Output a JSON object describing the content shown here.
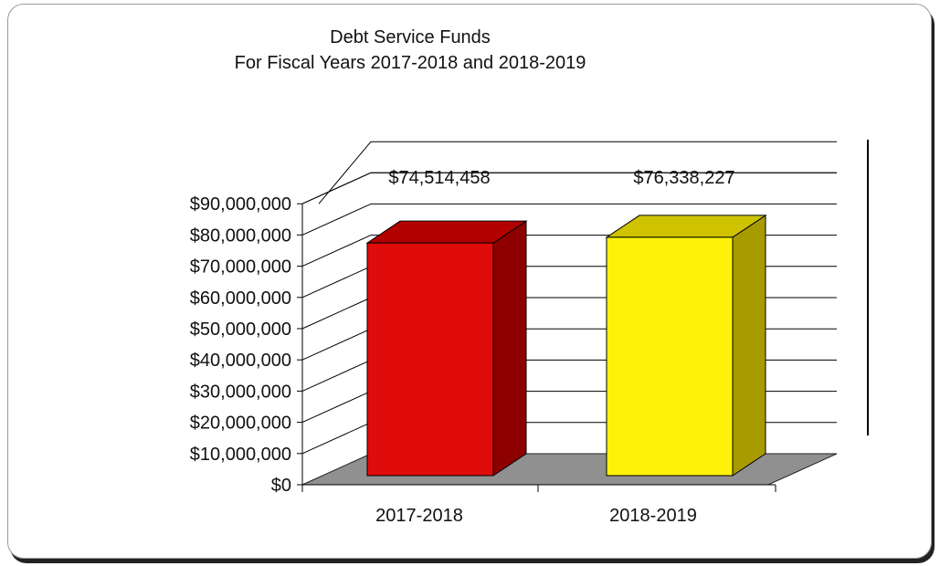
{
  "chart_data": {
    "type": "bar",
    "title": "Debt Service Funds",
    "subtitle": "For Fiscal Years 2017-2018 and 2018-2019",
    "categories": [
      "2017-2018",
      "2018-2019"
    ],
    "values": [
      74514458,
      76338227
    ],
    "data_labels": [
      "$74,514,458",
      "$76,338,227"
    ],
    "ylim": [
      0,
      90000000
    ],
    "y_ticks": [
      0,
      10000000,
      20000000,
      30000000,
      40000000,
      50000000,
      60000000,
      70000000,
      80000000,
      90000000
    ],
    "y_tick_labels": [
      "$0",
      "$10,000,000",
      "$20,000,000",
      "$30,000,000",
      "$40,000,000",
      "$50,000,000",
      "$60,000,000",
      "$70,000,000",
      "$80,000,000",
      "$90,000,000"
    ],
    "xlabel": "",
    "ylabel": "",
    "grid": true,
    "style": "3d",
    "colors": {
      "bars": [
        "#e00b0b",
        "#fff20a"
      ],
      "bar_tops": [
        "#b30000",
        "#cfc300"
      ],
      "bar_sides": [
        "#8e0000",
        "#a89b00"
      ],
      "floor": "#909090",
      "grid": "#000000"
    }
  }
}
